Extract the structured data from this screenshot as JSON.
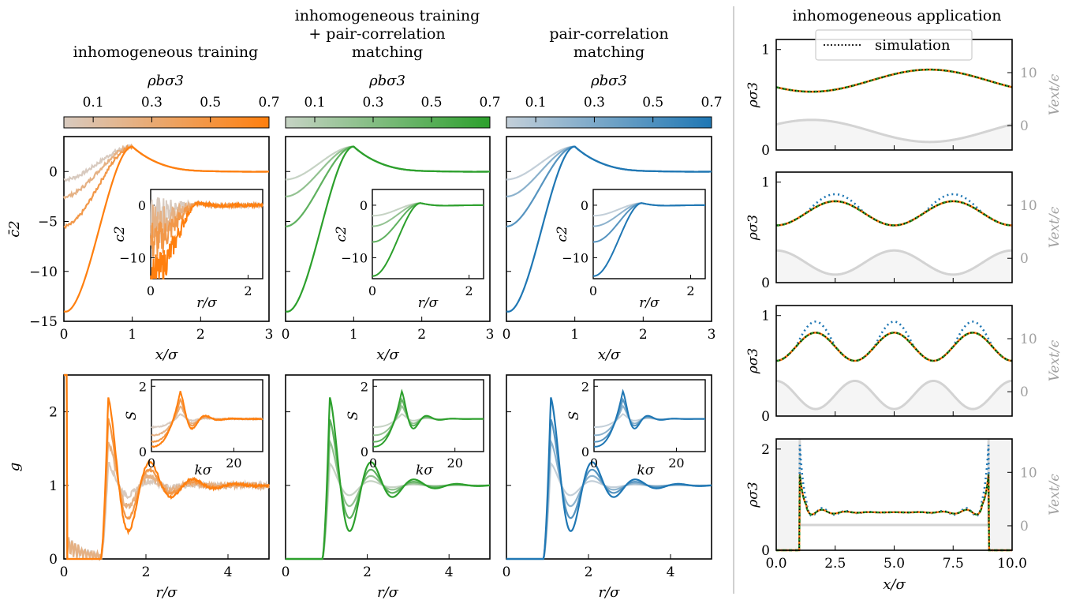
{
  "columns": [
    {
      "title_lines": [
        "inhomogeneous training"
      ],
      "color": "#ff7f0e",
      "light": "#d8cabf"
    },
    {
      "title_lines": [
        "inhomogeneous training",
        "+ pair-correlation",
        "matching"
      ],
      "color": "#2ca02c",
      "light": "#c6d3c4"
    },
    {
      "title_lines": [
        "pair-correlation",
        "matching"
      ],
      "color": "#1f77b4",
      "light": "#c3cfd9"
    }
  ],
  "colorbar": {
    "label": "ρbσ3",
    "ticks": [
      "0.1",
      "0.3",
      "0.5",
      "0.7"
    ]
  },
  "right_title": "inhomogeneous application",
  "legend": {
    "label": "simulation"
  },
  "chart_data": [
    {
      "type": "line",
      "id": "c2bar",
      "xlabel": "x/σ",
      "ylabel": "c̄2",
      "xlim": [
        0,
        3
      ],
      "ylim": [
        -15,
        3.5
      ],
      "xticks": [
        "0",
        "1",
        "2",
        "3"
      ],
      "yticks": [
        "0",
        "−5",
        "−10",
        "−15"
      ],
      "densities": [
        0.1,
        0.3,
        0.5,
        0.7
      ],
      "series": [
        {
          "values_at_x0": [
            -0.8,
            -2.5,
            -5.5,
            -14.0
          ],
          "peak_x": 1.0,
          "peak_y": 2.5,
          "tail_y": 0.0
        }
      ],
      "inset": {
        "type": "line",
        "xlabel": "r/σ",
        "ylabel": "c2",
        "xlim": [
          0,
          2.3
        ],
        "ylim": [
          -14,
          3
        ],
        "xticks": [
          "0",
          "2"
        ],
        "yticks": [
          "0",
          "−10"
        ],
        "values_at_r0": [
          -2,
          -4,
          -7,
          -13.5
        ],
        "peak_x": 1.0,
        "peak_y": 0.4
      }
    },
    {
      "type": "line",
      "id": "g",
      "xlabel": "r/σ",
      "ylabel": "g",
      "xlim": [
        0,
        5
      ],
      "ylim": [
        0,
        2.5
      ],
      "xticks": [
        "0",
        "2",
        "4"
      ],
      "yticks": [
        "0",
        "1",
        "2"
      ],
      "peak_heights": [
        1.3,
        1.6,
        1.9,
        2.2
      ],
      "peak_x": 1.08,
      "inset": {
        "type": "line",
        "xlabel": "kσ",
        "ylabel": "S",
        "xlim": [
          0,
          27
        ],
        "ylim": [
          0,
          2.2
        ],
        "xticks": [
          "0",
          "20"
        ],
        "yticks": [
          "0",
          "2"
        ],
        "s0_values": [
          0.75,
          0.5,
          0.3,
          0.15
        ],
        "peak_values": [
          1.15,
          1.4,
          1.6,
          1.85
        ],
        "peak_k": 7.0
      }
    },
    {
      "type": "line",
      "id": "application",
      "xlabel": "x/σ",
      "ylabel": "ρσ3",
      "y2label": "Vext/ϵ",
      "xlim": [
        0,
        10
      ],
      "xticks": [
        "0.0",
        "2.5",
        "5.0",
        "7.5",
        "10.0"
      ],
      "panels": [
        {
          "ylim": [
            0,
            1.1
          ],
          "yticks": [
            "0",
            "1"
          ],
          "y2ticks": [
            "10",
            "0"
          ],
          "periods": 1,
          "rho_mean": 0.69,
          "rho_amp": 0.11,
          "sim_amp": 0.11,
          "v_mean": 0.19,
          "v_amp": 0.11
        },
        {
          "ylim": [
            0,
            1.1
          ],
          "yticks": [
            "0",
            "1"
          ],
          "y2ticks": [
            "10",
            "0"
          ],
          "periods": 2,
          "rho_mean": 0.69,
          "rho_amp": 0.12,
          "sim_amp": 0.19,
          "v_mean": 0.2,
          "v_amp": 0.12
        },
        {
          "ylim": [
            0,
            1.1
          ],
          "yticks": [
            "0",
            "1"
          ],
          "y2ticks": [
            "10",
            "0"
          ],
          "periods": 3,
          "rho_mean": 0.69,
          "rho_amp": 0.14,
          "sim_amp": 0.25,
          "v_mean": 0.21,
          "v_amp": 0.14
        },
        {
          "ylim": [
            0,
            2.2
          ],
          "yticks": [
            "0",
            "2"
          ],
          "y2ticks": [
            "10",
            "0"
          ],
          "walls": [
            1.0,
            9.0
          ],
          "rho_mean": 0.75,
          "contact": 1.5,
          "sim_contact": 2.0
        }
      ]
    }
  ]
}
